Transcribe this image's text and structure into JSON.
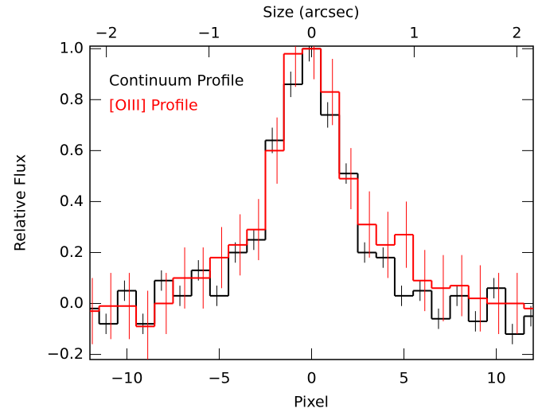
{
  "chart_data": {
    "type": "step",
    "xlabel": "Pixel",
    "ylabel": "Relative Flux",
    "x2label": "Size (arcsec)",
    "x": [
      -12,
      -11,
      -10,
      -9,
      -8,
      -7,
      -6,
      -5,
      -4,
      -3,
      -2,
      -1,
      0,
      1,
      2,
      3,
      4,
      5,
      6,
      7,
      8,
      9,
      10,
      11,
      12
    ],
    "series": [
      {
        "name": "Continuum Profile",
        "color": "#000000",
        "values": [
          -0.02,
          -0.08,
          0.05,
          -0.08,
          0.09,
          0.03,
          0.13,
          0.03,
          0.2,
          0.25,
          0.64,
          0.86,
          1.0,
          0.74,
          0.51,
          0.2,
          0.18,
          0.03,
          0.05,
          -0.06,
          0.03,
          -0.07,
          0.06,
          -0.12,
          -0.05
        ],
        "errors": [
          0.04,
          0.04,
          0.04,
          0.04,
          0.04,
          0.04,
          0.04,
          0.04,
          0.04,
          0.04,
          0.05,
          0.05,
          0.05,
          0.05,
          0.04,
          0.04,
          0.04,
          0.04,
          0.04,
          0.04,
          0.04,
          0.04,
          0.04,
          0.04,
          0.04
        ]
      },
      {
        "name": "[OIII] Profile",
        "color": "#ff0000",
        "values": [
          -0.03,
          -0.01,
          -0.01,
          -0.09,
          0.0,
          0.1,
          0.1,
          0.18,
          0.23,
          0.29,
          0.6,
          0.98,
          1.0,
          0.83,
          0.49,
          0.31,
          0.23,
          0.27,
          0.09,
          0.06,
          0.07,
          0.02,
          0.0,
          0.0,
          -0.02
        ],
        "errors": [
          0.13,
          0.13,
          0.13,
          0.14,
          0.12,
          0.12,
          0.12,
          0.12,
          0.12,
          0.12,
          0.13,
          0.13,
          0.12,
          0.13,
          0.12,
          0.13,
          0.13,
          0.13,
          0.12,
          0.13,
          0.12,
          0.13,
          0.12,
          0.12,
          0.13
        ]
      }
    ],
    "xlim": [
      -12,
      12
    ],
    "xticks": [
      {
        "value": -10,
        "label": "−10"
      },
      {
        "value": -5,
        "label": "−5"
      },
      0,
      5,
      10
    ],
    "x2lim": [
      -2.16,
      2.16
    ],
    "x2ticks": [
      {
        "value": -2,
        "label": "−2"
      },
      {
        "value": -1,
        "label": "−1"
      },
      0,
      1,
      2
    ],
    "ylim": [
      -0.22,
      1.01
    ],
    "yticks": [
      {
        "value": -0.2,
        "label": "−0.2"
      },
      {
        "value": 0,
        "label": "0.0"
      },
      {
        "value": 0.2,
        "label": "0.2"
      },
      {
        "value": 0.4,
        "label": "0.4"
      },
      {
        "value": 0.6,
        "label": "0.6"
      },
      {
        "value": 0.8,
        "label": "0.8"
      },
      {
        "value": 1.0,
        "label": "1.0"
      }
    ],
    "legend": "upper left"
  }
}
